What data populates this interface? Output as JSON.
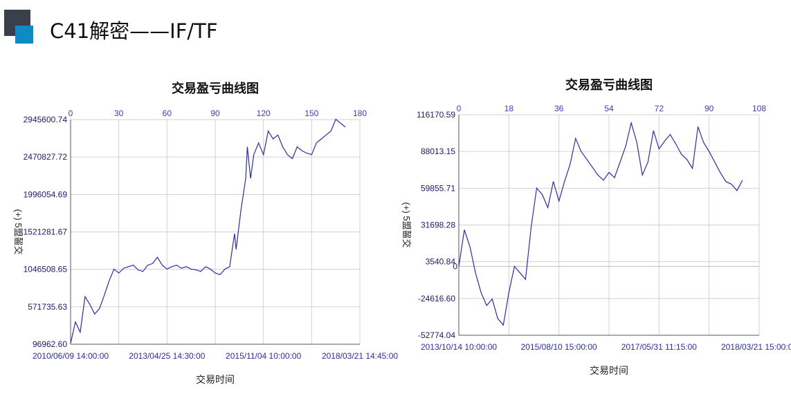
{
  "header": {
    "title": "C41解密——IF/TF"
  },
  "chart_data": [
    {
      "type": "line",
      "title": "交易盈亏曲线图",
      "xlabel": "交易时间",
      "ylabel": "(+) 5盟齧交",
      "top_axis_ticks": [
        "0",
        "30",
        "60",
        "90",
        "120",
        "150",
        "180"
      ],
      "top_axis_range": [
        0,
        180
      ],
      "y_ticks": [
        "2945600.74",
        "2470827.72",
        "1996054.69",
        "1521281.67",
        "1046508.65",
        "571735.63",
        "96962.60"
      ],
      "ylim": [
        96962.6,
        2945600.74
      ],
      "x_tick_labels": [
        "2010/06/09 14:00:00",
        "2013/04/25 14:30:00",
        "2015/11/04 10:00:00",
        "2018/03/21 14:45:00"
      ],
      "grid": true,
      "line_color": "#2a2ab8",
      "series": [
        {
          "x": [
            0,
            3,
            6,
            9,
            12,
            15,
            18,
            21,
            24,
            27,
            30,
            33,
            36,
            39,
            42,
            45,
            48,
            51,
            54,
            57,
            60,
            63,
            66,
            69,
            72,
            75,
            78,
            81,
            84,
            87,
            90,
            93,
            96,
            99,
            102,
            103,
            106,
            109,
            110,
            112,
            114,
            117,
            120,
            123,
            126,
            129,
            132,
            135,
            138,
            141,
            144,
            147,
            150,
            153,
            156,
            159,
            162,
            165,
            168,
            171
          ],
          "y": [
            110000,
            380000,
            250000,
            700000,
            600000,
            480000,
            550000,
            720000,
            900000,
            1050000,
            1000000,
            1060000,
            1080000,
            1100000,
            1040000,
            1020000,
            1100000,
            1120000,
            1200000,
            1100000,
            1050000,
            1080000,
            1100000,
            1060000,
            1080000,
            1050000,
            1040000,
            1020000,
            1080000,
            1050000,
            1000000,
            980000,
            1050000,
            1080000,
            1500000,
            1300000,
            1800000,
            2200000,
            2600000,
            2200000,
            2500000,
            2650000,
            2500000,
            2800000,
            2700000,
            2750000,
            2600000,
            2500000,
            2450000,
            2600000,
            2550000,
            2520000,
            2500000,
            2650000,
            2700000,
            2750000,
            2800000,
            2950000,
            2900000,
            2850000
          ]
        }
      ]
    },
    {
      "type": "line",
      "title": "交易盈亏曲线图",
      "xlabel": "交易时间",
      "ylabel": "(+) 5盟齧交",
      "top_axis_ticks": [
        "0",
        "18",
        "36",
        "54",
        "72",
        "90",
        "108"
      ],
      "top_axis_range": [
        0,
        108
      ],
      "y_ticks": [
        "116170.59",
        "88013.15",
        "59855.71",
        "31698.28",
        "3540.84",
        "-24616.60",
        "-52774.04"
      ],
      "zero_label": "0",
      "ylim": [
        -52774.04,
        116170.59
      ],
      "x_tick_labels": [
        "2013/10/14 10:00:00",
        "2015/08/10 15:00:00",
        "2017/05/31 11:15:00",
        "2018/03/21 15:00:00"
      ],
      "grid": true,
      "line_color": "#2a2ab8",
      "series": [
        {
          "x": [
            0,
            2,
            4,
            6,
            8,
            10,
            12,
            14,
            16,
            18,
            20,
            22,
            24,
            26,
            28,
            30,
            32,
            34,
            36,
            38,
            40,
            42,
            44,
            46,
            48,
            50,
            52,
            54,
            56,
            58,
            60,
            62,
            64,
            66,
            68,
            70,
            72,
            74,
            76,
            78,
            80,
            82,
            84,
            86,
            88,
            90,
            92,
            94,
            96,
            98,
            100,
            102
          ],
          "y": [
            0,
            28000,
            15000,
            -5000,
            -20000,
            -30000,
            -25000,
            -40000,
            -45000,
            -20000,
            0,
            -5000,
            -10000,
            30000,
            60000,
            55000,
            45000,
            65000,
            50000,
            65000,
            78000,
            98000,
            88000,
            82000,
            76000,
            70000,
            66000,
            72000,
            68000,
            80000,
            92000,
            110000,
            95000,
            70000,
            80000,
            104000,
            90000,
            96000,
            101000,
            94000,
            86000,
            82000,
            75000,
            107000,
            95000,
            88000,
            80000,
            72000,
            65000,
            63000,
            58000,
            66000
          ]
        }
      ]
    }
  ]
}
